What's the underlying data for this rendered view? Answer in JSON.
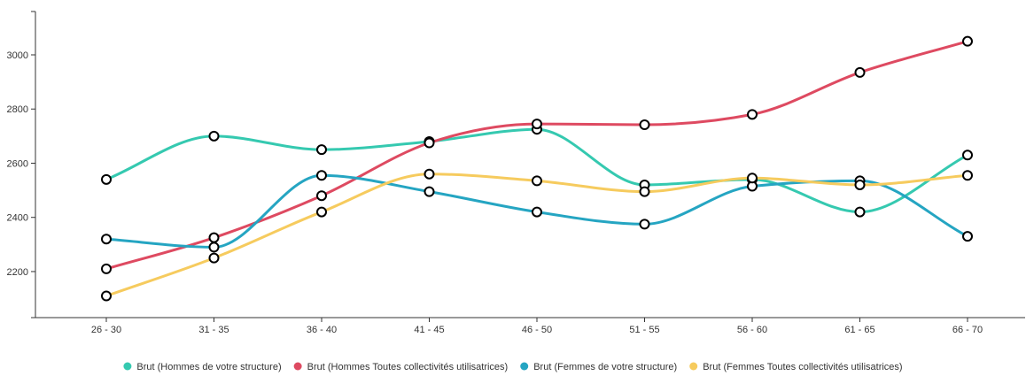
{
  "chart_data": {
    "type": "line",
    "title": "",
    "xlabel": "",
    "ylabel": "",
    "categories": [
      "26 - 30",
      "31 - 35",
      "36 - 40",
      "41 - 45",
      "46 - 50",
      "51 - 55",
      "56 - 60",
      "61 - 65",
      "66 - 70"
    ],
    "ylim": [
      2030,
      3160
    ],
    "yticks": [
      2200,
      2400,
      2600,
      2800,
      3000
    ],
    "grid": false,
    "legend_position": "bottom",
    "series": [
      {
        "name": "Brut (Hommes de votre structure)",
        "color": "#35c9b0",
        "values": [
          2540,
          2700,
          2650,
          2680,
          2725,
          2520,
          2540,
          2420,
          2630
        ]
      },
      {
        "name": "Brut (Hommes Toutes collectivités utilisatrices)",
        "color": "#de4a61",
        "values": [
          2210,
          2325,
          2480,
          2675,
          2745,
          2742,
          2780,
          2935,
          3050
        ]
      },
      {
        "name": "Brut (Femmes de votre structure)",
        "color": "#25a5c2",
        "values": [
          2320,
          2290,
          2555,
          2495,
          2420,
          2375,
          2515,
          2535,
          2330
        ]
      },
      {
        "name": "Brut (Femmes Toutes collectivités utilisatrices)",
        "color": "#f6cb5e",
        "values": [
          2110,
          2250,
          2420,
          2560,
          2535,
          2495,
          2545,
          2520,
          2555
        ]
      }
    ]
  }
}
